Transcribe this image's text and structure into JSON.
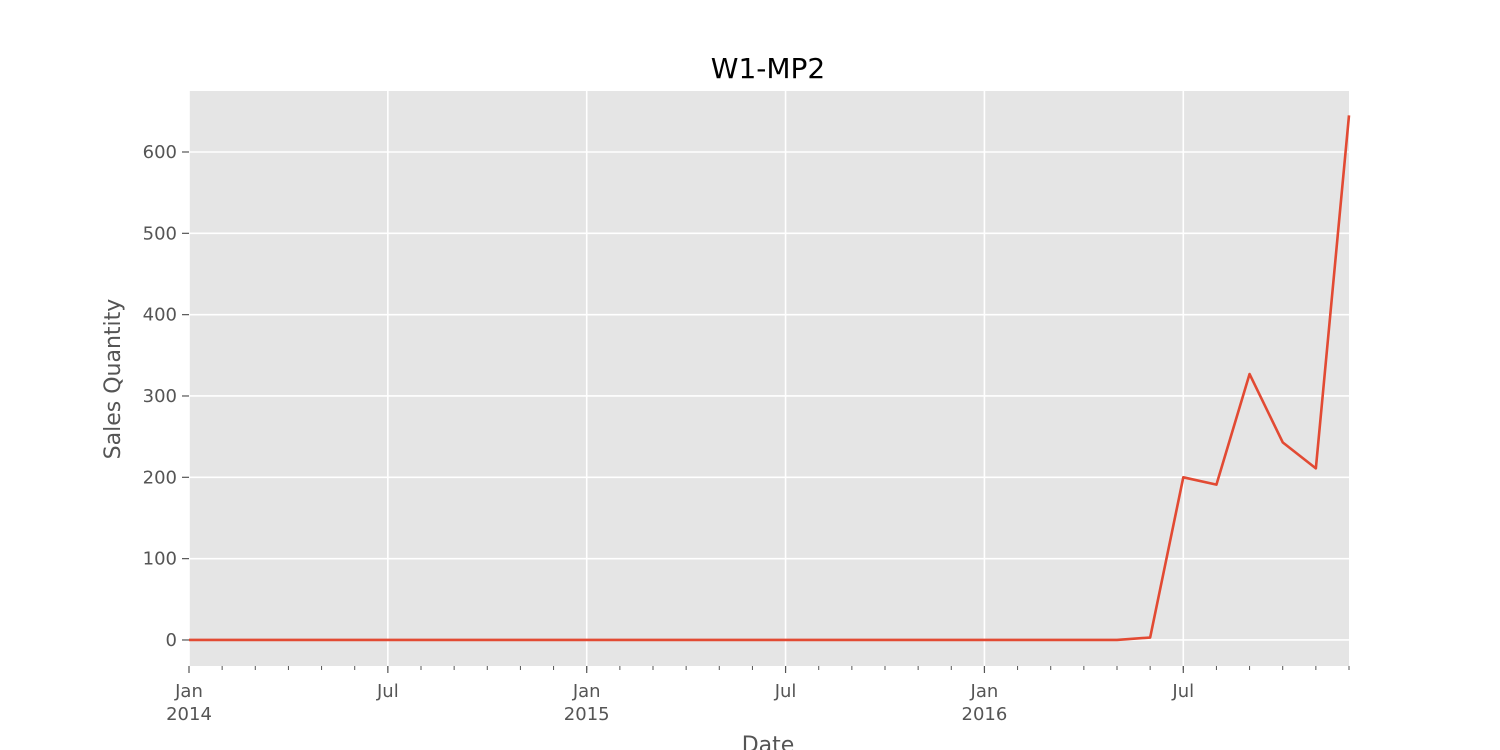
{
  "chart_data": {
    "type": "line",
    "title": "W1-MP2",
    "xlabel": "Date",
    "ylabel": "Sales Quantity",
    "colors": {
      "plot_background": "#e5e5e5",
      "grid": "#ffffff",
      "line": "#e24a33",
      "text": "#555555"
    },
    "grid": true,
    "xlim": [
      "2014-01",
      "2016-12"
    ],
    "ylim": [
      -32,
      675
    ],
    "x_major_ticks": [
      {
        "date": "2014-01",
        "line1": "Jan",
        "line2": "2014"
      },
      {
        "date": "2014-07",
        "line1": "Jul",
        "line2": ""
      },
      {
        "date": "2015-01",
        "line1": "Jan",
        "line2": "2015"
      },
      {
        "date": "2015-07",
        "line1": "Jul",
        "line2": ""
      },
      {
        "date": "2016-01",
        "line1": "Jan",
        "line2": "2016"
      },
      {
        "date": "2016-07",
        "line1": "Jul",
        "line2": ""
      }
    ],
    "y_ticks": [
      {
        "value": 0,
        "label": "0"
      },
      {
        "value": 100,
        "label": "100"
      },
      {
        "value": 200,
        "label": "200"
      },
      {
        "value": 300,
        "label": "300"
      },
      {
        "value": 400,
        "label": "400"
      },
      {
        "value": 500,
        "label": "500"
      },
      {
        "value": 600,
        "label": "600"
      }
    ],
    "series": [
      {
        "x": [
          "2014-01",
          "2014-02",
          "2014-03",
          "2014-04",
          "2014-05",
          "2014-06",
          "2014-07",
          "2014-08",
          "2014-09",
          "2014-10",
          "2014-11",
          "2014-12",
          "2015-01",
          "2015-02",
          "2015-03",
          "2015-04",
          "2015-05",
          "2015-06",
          "2015-07",
          "2015-08",
          "2015-09",
          "2015-10",
          "2015-11",
          "2015-12",
          "2016-01",
          "2016-02",
          "2016-03",
          "2016-04",
          "2016-05",
          "2016-06",
          "2016-07",
          "2016-08",
          "2016-09",
          "2016-10",
          "2016-11",
          "2016-12"
        ],
        "values": [
          0,
          0,
          0,
          0,
          0,
          0,
          0,
          0,
          0,
          0,
          0,
          0,
          0,
          0,
          0,
          0,
          0,
          0,
          0,
          0,
          0,
          0,
          0,
          0,
          0,
          0,
          0,
          0,
          0,
          3,
          200,
          191,
          327,
          243,
          211,
          645
        ]
      }
    ]
  }
}
